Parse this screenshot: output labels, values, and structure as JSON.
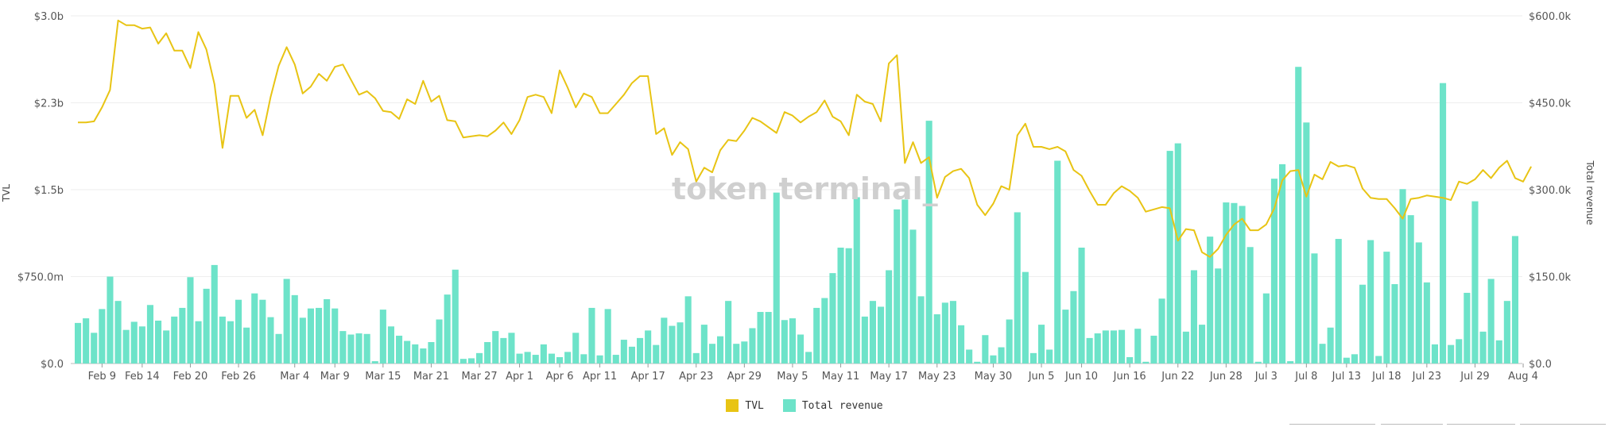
{
  "chart_data": {
    "type": "bar+line",
    "watermark": "token terminal_",
    "left_axis": {
      "label": "TVL",
      "ticks": [
        "$0.0",
        "$750.0m",
        "$1.5b",
        "$2.3b",
        "$3.0b"
      ],
      "range": [
        0,
        3.0
      ]
    },
    "right_axis": {
      "label": "Total revenue",
      "ticks": [
        "$0.0",
        "$150.0k",
        "$300.0k",
        "$450.0k",
        "$600.0k"
      ],
      "range": [
        0,
        600
      ]
    },
    "x_labels": [
      "Feb 9",
      "Feb 14",
      "Feb 20",
      "Feb 26",
      "Mar 4",
      "Mar 9",
      "Mar 15",
      "Mar 21",
      "Mar 27",
      "Apr 1",
      "Apr 6",
      "Apr 11",
      "Apr 17",
      "Apr 23",
      "Apr 29",
      "May 5",
      "May 11",
      "May 17",
      "May 23",
      "May 30",
      "Jun 5",
      "Jun 10",
      "Jun 16",
      "Jun 22",
      "Jun 28",
      "Jul 3",
      "Jul 8",
      "Jul 13",
      "Jul 18",
      "Jul 23",
      "Jul 29",
      "Aug 4"
    ],
    "x_label_days": [
      3,
      8,
      14,
      20,
      27,
      32,
      38,
      44,
      50,
      55,
      60,
      65,
      71,
      77,
      83,
      89,
      95,
      101,
      107,
      114,
      120,
      125,
      131,
      137,
      143,
      148,
      153,
      158,
      163,
      168,
      174,
      180
    ],
    "series": [
      {
        "name": "TVL",
        "unit": "$b",
        "color": "#e8c414",
        "type": "line",
        "values": [
          2.08,
          2.08,
          2.09,
          2.21,
          2.36,
          2.96,
          2.92,
          2.92,
          2.89,
          2.9,
          2.76,
          2.85,
          2.7,
          2.7,
          2.55,
          2.86,
          2.71,
          2.41,
          1.86,
          2.31,
          2.31,
          2.12,
          2.19,
          1.97,
          2.3,
          2.57,
          2.73,
          2.58,
          2.33,
          2.39,
          2.5,
          2.44,
          2.56,
          2.58,
          2.45,
          2.32,
          2.35,
          2.29,
          2.18,
          2.17,
          2.11,
          2.28,
          2.24,
          2.44,
          2.26,
          2.31,
          2.1,
          2.09,
          1.95,
          1.96,
          1.97,
          1.96,
          2.01,
          2.08,
          1.98,
          2.1,
          2.3,
          2.32,
          2.3,
          2.16,
          2.53,
          2.38,
          2.21,
          2.33,
          2.3,
          2.16,
          2.16,
          2.24,
          2.32,
          2.42,
          2.48,
          2.48,
          1.98,
          2.03,
          1.8,
          1.91,
          1.85,
          1.57,
          1.69,
          1.65,
          1.84,
          1.93,
          1.92,
          2.01,
          2.12,
          2.09,
          2.04,
          1.99,
          2.17,
          2.14,
          2.08,
          2.13,
          2.17,
          2.27,
          2.13,
          2.09,
          1.97,
          2.32,
          2.26,
          2.24,
          2.09,
          2.59,
          2.66,
          1.73,
          1.91,
          1.73,
          1.78,
          1.43,
          1.61,
          1.66,
          1.68,
          1.6,
          1.37,
          1.28,
          1.38,
          1.53,
          1.5,
          1.97,
          2.07,
          1.87,
          1.87,
          1.85,
          1.87,
          1.83,
          1.67,
          1.62,
          1.49,
          1.37,
          1.37,
          1.47,
          1.53,
          1.49,
          1.43,
          1.31,
          1.33,
          1.35,
          1.34,
          1.06,
          1.16,
          1.15,
          0.96,
          0.92,
          0.99,
          1.11,
          1.2,
          1.25,
          1.15,
          1.15,
          1.2,
          1.34,
          1.58,
          1.66,
          1.67,
          1.44,
          1.63,
          1.59,
          1.74,
          1.7,
          1.71,
          1.69,
          1.51,
          1.43,
          1.42,
          1.42,
          1.34,
          1.25,
          1.42,
          1.43,
          1.45,
          1.44,
          1.43,
          1.41,
          1.57,
          1.55,
          1.59,
          1.67,
          1.6,
          1.69,
          1.75,
          1.6,
          1.57,
          1.7
        ]
      },
      {
        "name": "Total revenue",
        "unit": "$k",
        "color": "#6de3c9",
        "type": "bar",
        "values": [
          70,
          78,
          53,
          94,
          150,
          108,
          58,
          72,
          64,
          101,
          74,
          57,
          81,
          96,
          149,
          73,
          129,
          170,
          81,
          73,
          110,
          62,
          121,
          110,
          80,
          51,
          146,
          118,
          79,
          95,
          96,
          111,
          95,
          56,
          50,
          52,
          51,
          4,
          93,
          64,
          48,
          39,
          33,
          26,
          37,
          76,
          119,
          162,
          8,
          9,
          18,
          37,
          56,
          44,
          53,
          17,
          20,
          15,
          33,
          17,
          11,
          20,
          53,
          16,
          96,
          14,
          94,
          15,
          41,
          29,
          44,
          57,
          32,
          79,
          65,
          71,
          116,
          18,
          67,
          34,
          47,
          108,
          34,
          38,
          61,
          89,
          89,
          295,
          75,
          78,
          50,
          20,
          96,
          113,
          156,
          200,
          199,
          287,
          81,
          108,
          98,
          161,
          266,
          283,
          231,
          116,
          419,
          85,
          105,
          108,
          66,
          24,
          3,
          49,
          14,
          28,
          76,
          261,
          158,
          18,
          67,
          24,
          350,
          93,
          125,
          200,
          44,
          52,
          57,
          57,
          58,
          11,
          60,
          3,
          48,
          112,
          367,
          380,
          55,
          161,
          67,
          219,
          164,
          278,
          277,
          272,
          201,
          3,
          121,
          319,
          344,
          4,
          512,
          416,
          190,
          34,
          62,
          215,
          10,
          16,
          136,
          213,
          13,
          193,
          137,
          301,
          256,
          209,
          140,
          33,
          484,
          32,
          42,
          122,
          280,
          55,
          146,
          40,
          108,
          220
        ]
      }
    ]
  },
  "legend": {
    "tvl_label": "TVL",
    "revenue_label": "Total revenue"
  }
}
